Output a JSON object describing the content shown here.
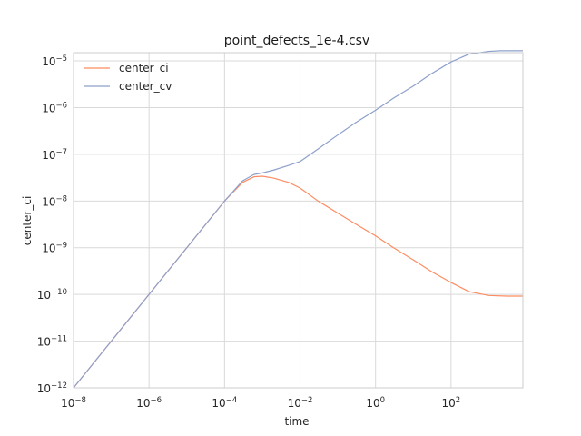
{
  "chart_data": {
    "type": "line",
    "title": "point_defects_1e-4.csv",
    "xlabel": "time",
    "ylabel": "center_ci",
    "x_scale": "log",
    "y_scale": "log",
    "xlim": [
      1e-08,
      8000
    ],
    "ylim": [
      1e-12,
      1.5e-05
    ],
    "grid": true,
    "legend_position": "top-left",
    "x_ticks": [
      {
        "base": "10",
        "exp": "−8",
        "value": 1e-08
      },
      {
        "base": "10",
        "exp": "−6",
        "value": 1e-06
      },
      {
        "base": "10",
        "exp": "−4",
        "value": 0.0001
      },
      {
        "base": "10",
        "exp": "−2",
        "value": 0.01
      },
      {
        "base": "10",
        "exp": "0",
        "value": 1
      },
      {
        "base": "10",
        "exp": "2",
        "value": 100
      }
    ],
    "y_ticks": [
      {
        "base": "10",
        "exp": "−12",
        "value": 1e-12
      },
      {
        "base": "10",
        "exp": "−11",
        "value": 1e-11
      },
      {
        "base": "10",
        "exp": "−10",
        "value": 1e-10
      },
      {
        "base": "10",
        "exp": "−9",
        "value": 1e-09
      },
      {
        "base": "10",
        "exp": "−8",
        "value": 1e-08
      },
      {
        "base": "10",
        "exp": "−7",
        "value": 1e-07
      },
      {
        "base": "10",
        "exp": "−6",
        "value": 1e-06
      },
      {
        "base": "10",
        "exp": "−5",
        "value": 1e-05
      }
    ],
    "series": [
      {
        "name": "center_ci",
        "color": "#fc8d62",
        "x": [
          1e-08,
          1e-07,
          1e-06,
          1e-05,
          0.0001,
          0.0003,
          0.0006,
          0.001,
          0.002,
          0.005,
          0.01,
          0.03,
          0.1,
          0.3,
          1,
          3,
          10,
          30,
          100,
          300,
          1000,
          3000,
          8000
        ],
        "y": [
          1e-12,
          1e-11,
          1e-10,
          1e-09,
          1e-08,
          2.5e-08,
          3.3e-08,
          3.4e-08,
          3.1e-08,
          2.5e-08,
          1.9e-08,
          1e-08,
          5.5e-09,
          3.2e-09,
          1.8e-09,
          1e-09,
          5.5e-10,
          3.1e-10,
          1.8e-10,
          1.15e-10,
          9.5e-11,
          9.2e-11,
          9.2e-11
        ]
      },
      {
        "name": "center_cv",
        "color": "#8da0cb",
        "x": [
          1e-08,
          1e-07,
          1e-06,
          1e-05,
          0.0001,
          0.0003,
          0.0006,
          0.001,
          0.002,
          0.005,
          0.01,
          0.03,
          0.1,
          0.3,
          1,
          3,
          10,
          30,
          100,
          300,
          1000,
          2000,
          8000
        ],
        "y": [
          1e-12,
          1e-11,
          1e-10,
          1e-09,
          1e-08,
          2.7e-08,
          3.7e-08,
          4e-08,
          4.6e-08,
          5.8e-08,
          7e-08,
          1.3e-07,
          2.6e-07,
          4.8e-07,
          8.8e-07,
          1.6e-06,
          2.9e-06,
          5.3e-06,
          9.5e-06,
          1.4e-05,
          1.6e-05,
          1.65e-05,
          1.65e-05
        ]
      }
    ]
  }
}
